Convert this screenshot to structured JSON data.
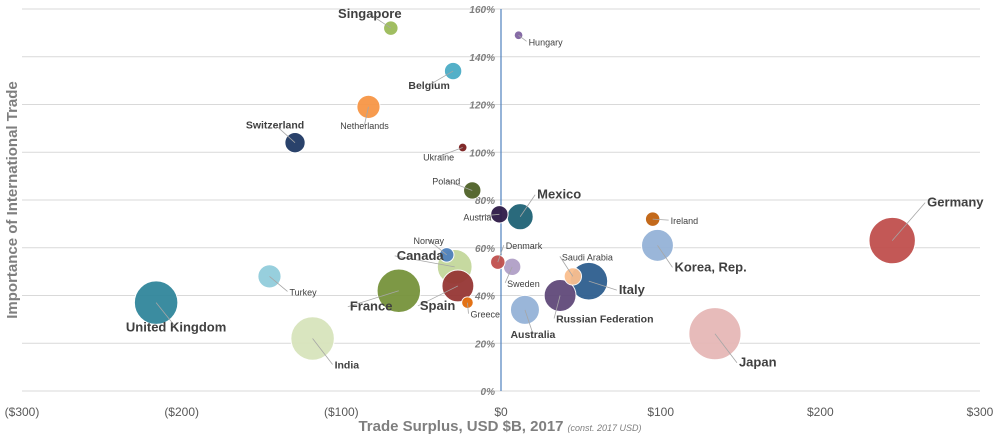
{
  "chart_data": {
    "type": "scatter",
    "title": "",
    "xlabel": "Trade Surplus, USD $B, 2017",
    "xlabel_note": "(const. 2017 USD)",
    "ylabel": "Importance of International Trade",
    "xlim": [
      -300,
      300
    ],
    "ylim": [
      0,
      160
    ],
    "x_ticks": [
      -300,
      -200,
      -100,
      0,
      100,
      200,
      300
    ],
    "x_tick_labels": [
      "($300)",
      "($200)",
      "($100)",
      "$0",
      "$100",
      "$200",
      "$300"
    ],
    "y_ticks": [
      0,
      20,
      40,
      60,
      80,
      100,
      120,
      140,
      160
    ],
    "y_tick_labels": [
      "0%",
      "20%",
      "40%",
      "60%",
      "80%",
      "100%",
      "120%",
      "140%",
      "160%"
    ],
    "grid": {
      "horizontal": true,
      "vertical": false
    },
    "points": [
      {
        "label": "Singapore",
        "x": -69,
        "y": 152,
        "size": 5,
        "color": "#9bbb59",
        "label_size": "large"
      },
      {
        "label": "Hungary",
        "x": 11,
        "y": 149,
        "size": 3,
        "color": "#8064a2",
        "label_size": "small"
      },
      {
        "label": "Belgium",
        "x": -30,
        "y": 134,
        "size": 6,
        "color": "#4bacc6",
        "label_size": "medium"
      },
      {
        "label": "Netherlands",
        "x": -83,
        "y": 119,
        "size": 8,
        "color": "#f79646",
        "label_size": "small"
      },
      {
        "label": "Switzerland",
        "x": -129,
        "y": 104,
        "size": 7,
        "color": "#1f3864",
        "label_size": "medium"
      },
      {
        "label": "Ukraine",
        "x": -24,
        "y": 102,
        "size": 3,
        "color": "#7b1f1f",
        "label_size": "small"
      },
      {
        "label": "Poland",
        "x": -18,
        "y": 84,
        "size": 6,
        "color": "#4f6228",
        "label_size": "small"
      },
      {
        "label": "Austria",
        "x": -1,
        "y": 74,
        "size": 6,
        "color": "#2e1a47",
        "label_size": "small"
      },
      {
        "label": "Mexico",
        "x": 12,
        "y": 73,
        "size": 9,
        "color": "#1f6375",
        "label_size": "large"
      },
      {
        "label": "Ireland",
        "x": 95,
        "y": 72,
        "size": 5,
        "color": "#c0620f",
        "label_size": "small"
      },
      {
        "label": "Norway",
        "x": -34,
        "y": 57,
        "size": 5,
        "color": "#4f81bd",
        "label_size": "small"
      },
      {
        "label": "Canada",
        "x": -29,
        "y": 52,
        "size": 12,
        "color": "#c4d79b",
        "label_size": "large"
      },
      {
        "label": "Denmark",
        "x": -2,
        "y": 54,
        "size": 5,
        "color": "#c0504d",
        "label_size": "small"
      },
      {
        "label": "Sweden",
        "x": 7,
        "y": 52,
        "size": 6,
        "color": "#b1a0c7",
        "label_size": "small"
      },
      {
        "label": "Saudi Arabia",
        "x": 45,
        "y": 48,
        "size": 6,
        "color": "#fabf8f",
        "label_size": "small"
      },
      {
        "label": "Korea, Rep.",
        "x": 98,
        "y": 61,
        "size": 11,
        "color": "#95b3d7",
        "label_size": "large"
      },
      {
        "label": "Germany",
        "x": 245,
        "y": 63,
        "size": 16,
        "color": "#c0504d",
        "label_size": "large"
      },
      {
        "label": "Turkey",
        "x": -145,
        "y": 48,
        "size": 8,
        "color": "#92cddc",
        "label_size": "small"
      },
      {
        "label": "United Kingdom",
        "x": -216,
        "y": 37,
        "size": 15,
        "color": "#31869b",
        "label_size": "large"
      },
      {
        "label": "France",
        "x": -64,
        "y": 42,
        "size": 15,
        "color": "#77933c",
        "label_size": "large"
      },
      {
        "label": "Spain",
        "x": -27,
        "y": 44,
        "size": 11,
        "color": "#963634",
        "label_size": "large"
      },
      {
        "label": "Greece",
        "x": -21,
        "y": 37,
        "size": 4,
        "color": "#e26b0a",
        "label_size": "small"
      },
      {
        "label": "Italy",
        "x": 55,
        "y": 46,
        "size": 13,
        "color": "#2e5e8f",
        "label_size": "large"
      },
      {
        "label": "Russian Federation",
        "x": 37,
        "y": 40,
        "size": 11,
        "color": "#60497a",
        "label_size": "medium"
      },
      {
        "label": "Australia",
        "x": 15,
        "y": 34,
        "size": 10,
        "color": "#95b3d7",
        "label_size": "medium"
      },
      {
        "label": "India",
        "x": -118,
        "y": 22,
        "size": 15,
        "color": "#d8e4bc",
        "label_size": "medium"
      },
      {
        "label": "Japan",
        "x": 134,
        "y": 24,
        "size": 18,
        "color": "#e6b8b7",
        "label_size": "large"
      }
    ]
  }
}
